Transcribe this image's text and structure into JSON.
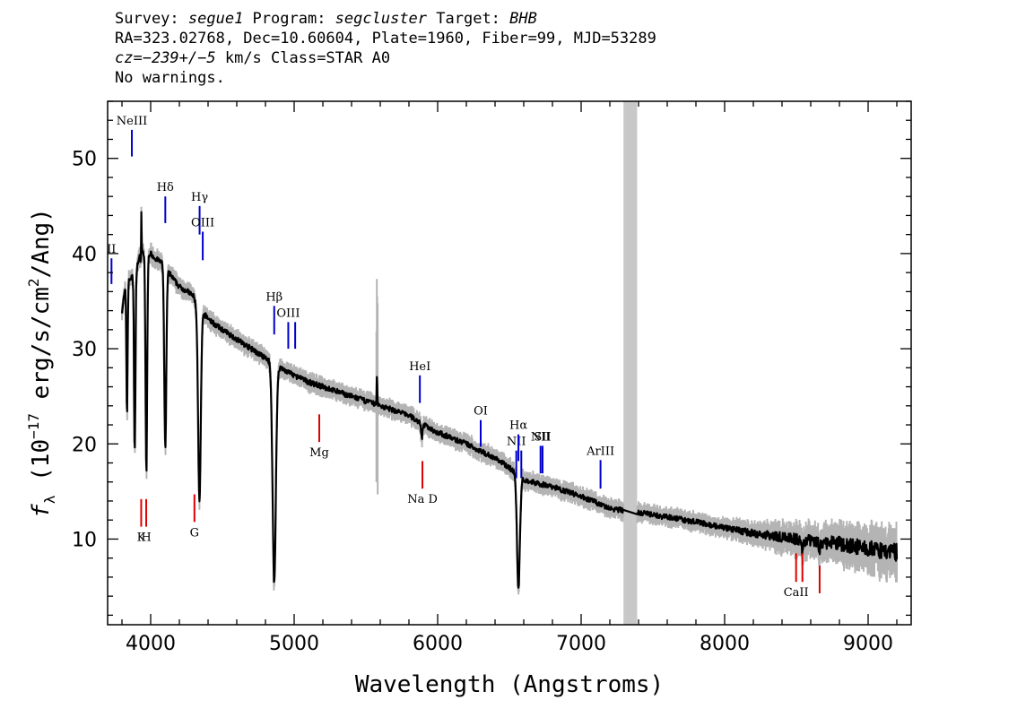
{
  "header": {
    "line1": {
      "survey_label": "Survey: ",
      "survey": "segue1",
      "program_label": " Program: ",
      "program": "segcluster",
      "target_label": " Target: ",
      "target": "BHB"
    },
    "line2": "RA=323.02768, Dec=10.60604, Plate=1960, Fiber=99, MJD=53289",
    "line3": {
      "cz_label": "cz=",
      "cz_value": "−239+/−5",
      "cz_rest": " km/s Class=STAR A0"
    },
    "line4": "No warnings."
  },
  "chart_data": {
    "type": "line",
    "title": "",
    "xlabel": "Wavelength (Angstroms)",
    "ylabel": "f_λ (10^-17 erg/s/cm^2/Ang)",
    "ylabel_parts": {
      "f": "f",
      "lambda": "λ",
      "open": " (10",
      "exp": "−17",
      "mid": " erg/s/cm",
      "exp2": "2",
      "close": "/Ang)"
    },
    "xlim": [
      3700,
      9300
    ],
    "ylim": [
      1,
      56
    ],
    "x_ticks": [
      4000,
      5000,
      6000,
      7000,
      8000,
      9000
    ],
    "y_ticks": [
      10,
      20,
      30,
      40,
      50
    ],
    "grey_band": [
      7295,
      7390
    ],
    "colors": {
      "flux": "#000000",
      "error": "#b4b4b4",
      "emission_line": "#0000cc",
      "absorption_line": "#dd0000",
      "band": "#c8c8c8"
    },
    "series": [
      {
        "continuum_points": [
          [
            3800,
            34
          ],
          [
            3830,
            37
          ],
          [
            3870,
            37.5
          ],
          [
            3900,
            38.5
          ],
          [
            3930,
            40
          ],
          [
            3960,
            40
          ],
          [
            4000,
            40
          ],
          [
            4030,
            39.5
          ],
          [
            4080,
            39
          ],
          [
            4150,
            37.5
          ],
          [
            4200,
            36.5
          ],
          [
            4260,
            36
          ],
          [
            4300,
            35.5
          ],
          [
            4330,
            34
          ],
          [
            4380,
            33.5
          ],
          [
            4450,
            32.5
          ],
          [
            4550,
            31.5
          ],
          [
            4650,
            30.5
          ],
          [
            4750,
            29.5
          ],
          [
            4800,
            29
          ],
          [
            4900,
            28
          ],
          [
            5000,
            27.2
          ],
          [
            5100,
            26.5
          ],
          [
            5200,
            26
          ],
          [
            5400,
            25
          ],
          [
            5600,
            24
          ],
          [
            5800,
            23
          ],
          [
            5900,
            22
          ],
          [
            6000,
            21.2
          ],
          [
            6200,
            20
          ],
          [
            6400,
            18.5
          ],
          [
            6500,
            17.5
          ],
          [
            6600,
            16.2
          ],
          [
            6800,
            15.5
          ],
          [
            7000,
            14.5
          ],
          [
            7200,
            13.2
          ],
          [
            7400,
            12.8
          ],
          [
            7600,
            12.3
          ],
          [
            7800,
            11.8
          ],
          [
            8000,
            11.2
          ],
          [
            8200,
            10.6
          ],
          [
            8400,
            10.2
          ],
          [
            8600,
            9.8
          ],
          [
            8800,
            9.5
          ],
          [
            9000,
            9.0
          ],
          [
            9100,
            8.6
          ],
          [
            9200,
            8.6
          ]
        ],
        "absorption_features": [
          {
            "center": 3835,
            "depth": 14,
            "width": 6
          },
          {
            "center": 3889,
            "depth": 19,
            "width": 7
          },
          {
            "center": 3934,
            "depth": 4,
            "width": 4
          },
          {
            "center": 3970,
            "depth": 23,
            "width": 8
          },
          {
            "center": 4102,
            "depth": 19,
            "width": 10
          },
          {
            "center": 4340,
            "depth": 20,
            "width": 13
          },
          {
            "center": 4861,
            "depth": 23,
            "width": 16
          },
          {
            "center": 5890,
            "depth": 1.5,
            "width": 6
          },
          {
            "center": 6563,
            "depth": 12,
            "width": 14
          },
          {
            "center": 8542,
            "depth": 1.2,
            "width": 6
          },
          {
            "center": 8662,
            "depth": 1.2,
            "width": 6
          }
        ],
        "emission_spikes": [
          {
            "center": 3935,
            "height": 8
          },
          {
            "center": 5577,
            "height": 3.5
          }
        ]
      }
    ],
    "line_markers": [
      {
        "label": "NeIII",
        "x": 3869,
        "color": "emission_line",
        "y0": 50.2,
        "y1": 53
      },
      {
        "label": "II",
        "x": 3727,
        "color": "emission_line",
        "y0": 36.8,
        "y1": 39.5
      },
      {
        "label": "Hδ",
        "x": 4102,
        "color": "emission_line",
        "y0": 43.2,
        "y1": 46
      },
      {
        "label": "Hγ",
        "x": 4341,
        "color": "emission_line",
        "y0": 42,
        "y1": 45
      },
      {
        "label": "OIII",
        "x": 4363,
        "color": "emission_line",
        "y0": 39.3,
        "y1": 42.3
      },
      {
        "label": "Hβ",
        "x": 4861,
        "color": "emission_line",
        "y0": 31.5,
        "y1": 34.5
      },
      {
        "label": "OIII",
        "x": 4959,
        "color": "emission_line",
        "y0": 30,
        "y1": 32.8
      },
      {
        "label": "",
        "x": 5007,
        "color": "emission_line",
        "y0": 30,
        "y1": 32.8
      },
      {
        "label": "HeI",
        "x": 5876,
        "color": "emission_line",
        "y0": 24.3,
        "y1": 27.2
      },
      {
        "label": "OI",
        "x": 6300,
        "color": "emission_line",
        "y0": 19.7,
        "y1": 22.5
      },
      {
        "label": "NII",
        "x": 6548,
        "color": "emission_line",
        "y0": 16.4,
        "y1": 19.3
      },
      {
        "label": "Hα",
        "x": 6563,
        "color": "emission_line",
        "y0": 18.2,
        "y1": 21
      },
      {
        "label": "",
        "x": 6583,
        "color": "emission_line",
        "y0": 16.4,
        "y1": 19.3
      },
      {
        "label": "NII",
        "x": 6717,
        "color": "emission_line",
        "y0": 16.9,
        "y1": 19.8
      },
      {
        "label": "SII",
        "x": 6731,
        "color": "emission_line",
        "y0": 16.9,
        "y1": 19.8
      },
      {
        "label": "ArIII",
        "x": 7135,
        "color": "emission_line",
        "y0": 15.3,
        "y1": 18.3
      },
      {
        "label": "K",
        "x": 3934,
        "color": "absorption_line",
        "y0": 11.3,
        "y1": 14.2
      },
      {
        "label": "H",
        "x": 3969,
        "color": "absorption_line",
        "y0": 11.3,
        "y1": 14.2
      },
      {
        "label": "G",
        "x": 4305,
        "color": "absorption_line",
        "y0": 11.8,
        "y1": 14.7
      },
      {
        "label": "Mg",
        "x": 5175,
        "color": "absorption_line",
        "y0": 20.2,
        "y1": 23.1
      },
      {
        "label": "Na D",
        "x": 5894,
        "color": "absorption_line",
        "y0": 15.3,
        "y1": 18.2
      },
      {
        "label": "CaII",
        "x": 8498,
        "color": "absorption_line",
        "y0": 5.5,
        "y1": 8.5
      },
      {
        "label": "",
        "x": 8542,
        "color": "absorption_line",
        "y0": 5.5,
        "y1": 8.5
      },
      {
        "label": "",
        "x": 8662,
        "color": "absorption_line",
        "y0": 4.3,
        "y1": 7.2
      }
    ]
  }
}
